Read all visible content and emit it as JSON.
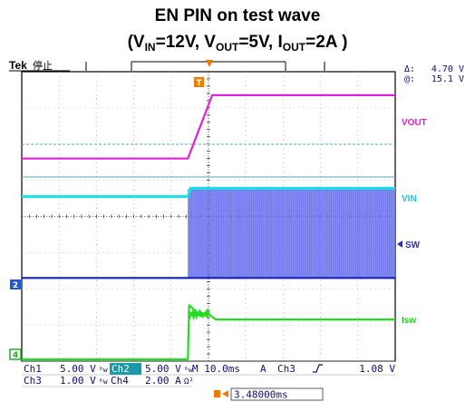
{
  "title": {
    "line1": "EN PIN on test wave",
    "open": "(V",
    "vin_sub": "IN",
    "mid1": "=12V, V",
    "vout_sub": "OUT",
    "mid2": "=5V, I",
    "iout_sub": "OUT",
    "end": "=2A )"
  },
  "scope": {
    "brand": "Tek",
    "status": "停止",
    "trigger_marker": "T",
    "cursor_readout": {
      "delta_label": "Δ:",
      "delta_value": "4.70 V",
      "at_label": "@:",
      "at_value": "15.1 V"
    },
    "channel_markers": {
      "ch2": "2",
      "ch4": "4"
    }
  },
  "colors": {
    "vout": "#e020d8",
    "vin": "#18e0e8",
    "sw": "#1420c0",
    "sw_fill": "#6f78f0",
    "isw": "#22dd22",
    "background": "#ffffff",
    "grid": "#9a9a9a",
    "trigger": "#f07a00",
    "text_dark": "#101070"
  },
  "chart_data": {
    "type": "line",
    "x_unit": "ms",
    "x_per_division": 10,
    "divisions": {
      "x": 10,
      "y": 8
    },
    "trigger_time_ms": 0,
    "xlim_ms": [
      -48,
      52
    ],
    "series": [
      {
        "name": "Vout",
        "label": "VOUT",
        "channel": "Ch1",
        "volts_per_div": 5,
        "x": [
          -48,
          -3.5,
          3,
          52
        ],
        "y_div": [
          5.6,
          5.6,
          7.35,
          7.35
        ]
      },
      {
        "name": "Vin",
        "label": "VIN",
        "channel": "Ch2",
        "volts_per_div": 5,
        "x": [
          -48,
          -3.5,
          -2.8,
          52
        ],
        "y_div": [
          4.55,
          4.55,
          4.78,
          4.78
        ]
      },
      {
        "name": "SW",
        "label": "SW",
        "channel": "Ch3",
        "volts_per_div": 1,
        "x": [
          -48,
          -3.5,
          52
        ],
        "y_div": [
          2.3,
          2.3,
          2.3
        ],
        "switching_from_ms": -3.5,
        "switching_band_div": [
          2.3,
          4.75
        ]
      },
      {
        "name": "Isw",
        "label": "Isw",
        "channel": "Ch4",
        "amps_per_div": 2,
        "x": [
          -48,
          -3.5,
          -3.2,
          0,
          2,
          4,
          52
        ],
        "y_div": [
          0.05,
          0.05,
          1.55,
          1.25,
          1.3,
          1.15,
          1.15
        ]
      }
    ]
  },
  "settings": {
    "row1": [
      {
        "ch": "Ch1",
        "val": "5.00 V",
        "bw": "ᴮw"
      },
      {
        "ch": "Ch2",
        "val": "5.00 V",
        "bw": "ᴮw"
      },
      {
        "tb": "M 10.0ms",
        "mode": "A",
        "trig_ch": "Ch3",
        "slope": "⨍",
        "level": "1.08 V"
      }
    ],
    "ch1_label": "Ch1",
    "ch1_val": "5.00 V",
    "ch2_label": "Ch2",
    "ch2_val": "5.00 V",
    "bw": "ᴮw",
    "timebase": "M 10.0ms",
    "mode": "A",
    "trig_ch": "Ch3",
    "trig_level": "1.08 V",
    "ch3_label": "Ch3",
    "ch3_val": "1.00 V",
    "ch4_label": "Ch4",
    "ch4_val": "2.00 A",
    "ch4_coupling": "Ω²",
    "trigger_pos_label": "T→",
    "trigger_pos_value": "3.48000ms"
  }
}
